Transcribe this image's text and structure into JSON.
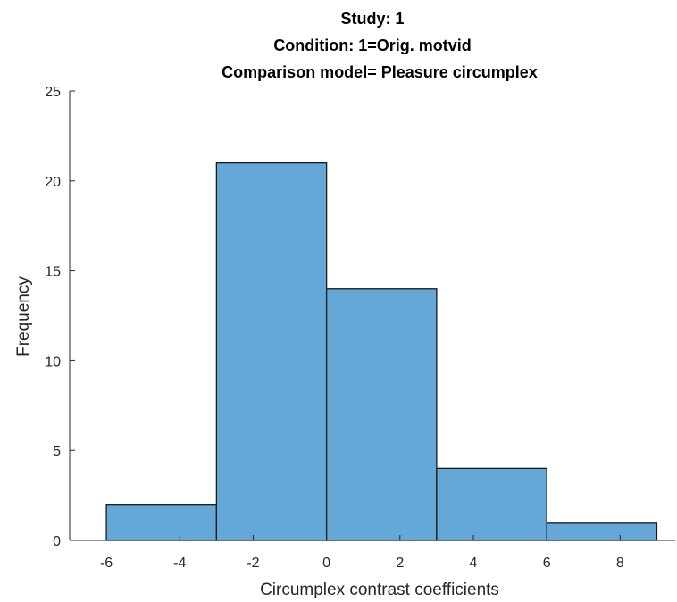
{
  "chart_data": {
    "type": "bar",
    "title_lines": [
      "Study: 1",
      "Condition: 1=Orig. motvid",
      "Comparison model= Pleasure circumplex"
    ],
    "xlabel": "Circumplex contrast coefficients",
    "ylabel": "Frequency",
    "bin_edges": [
      -6,
      -3,
      0,
      3,
      6,
      9
    ],
    "values": [
      2,
      21,
      14,
      4,
      1
    ],
    "xlim": [
      -7,
      9.5
    ],
    "ylim": [
      0,
      25
    ],
    "xticks": [
      -6,
      -4,
      -2,
      0,
      2,
      4,
      6,
      8
    ],
    "yticks": [
      0,
      5,
      10,
      15,
      20,
      25
    ],
    "bar_color": "#65a8d7",
    "edge_color": "#1a1a1a",
    "grid": false
  }
}
